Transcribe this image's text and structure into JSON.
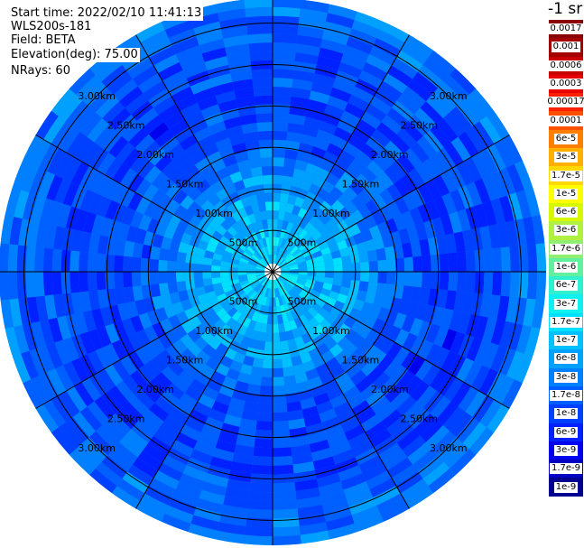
{
  "header": {
    "start_time": "Start time: 2022/02/10 11:41:13",
    "instrument": "WLS200s-181",
    "field": "Field: BETA",
    "elevation": "Elevation(deg): 75.00",
    "nrays": "NRays: 60"
  },
  "colorbar": {
    "unit_label": "-1 sr",
    "entries": [
      {
        "label": "0.0017",
        "color": "#8b0000"
      },
      {
        "label": "0.001",
        "color": "#a50000"
      },
      {
        "label": "0.0006",
        "color": "#c80000"
      },
      {
        "label": "0.0003",
        "color": "#e80000"
      },
      {
        "label": "0.00017",
        "color": "#ff2000"
      },
      {
        "label": "0.0001",
        "color": "#ff5000"
      },
      {
        "label": "6e-5",
        "color": "#ff8000"
      },
      {
        "label": "3e-5",
        "color": "#ffb000"
      },
      {
        "label": "1.7e-5",
        "color": "#ffd800"
      },
      {
        "label": "1e-5",
        "color": "#ffff00"
      },
      {
        "label": "6e-6",
        "color": "#d8f800"
      },
      {
        "label": "3e-6",
        "color": "#b0f040"
      },
      {
        "label": "1.7e-6",
        "color": "#90ee70"
      },
      {
        "label": "1e-6",
        "color": "#60f0a0"
      },
      {
        "label": "6e-7",
        "color": "#30f0d0"
      },
      {
        "label": "3e-7",
        "color": "#10f0f0"
      },
      {
        "label": "1.7e-7",
        "color": "#00e0ff"
      },
      {
        "label": "1e-7",
        "color": "#00c0ff"
      },
      {
        "label": "6e-8",
        "color": "#00a0ff"
      },
      {
        "label": "3e-8",
        "color": "#0080ff"
      },
      {
        "label": "1.7e-8",
        "color": "#0060ff"
      },
      {
        "label": "1e-8",
        "color": "#0040ff"
      },
      {
        "label": "6e-9",
        "color": "#0020ff"
      },
      {
        "label": "3e-9",
        "color": "#0000ee"
      },
      {
        "label": "1.7e-9",
        "color": "#0000c0"
      },
      {
        "label": "1e-9",
        "color": "#000090"
      }
    ]
  },
  "chart_data": {
    "type": "heatmap",
    "projection": "polar PPI",
    "field": "BETA",
    "elevation_deg": 75.0,
    "nrays": 60,
    "max_range_km": 3.3,
    "range_rings_km": [
      0.5,
      1.0,
      1.5,
      2.0,
      2.5,
      3.0
    ],
    "range_ring_labels": [
      "500m",
      "1.00km",
      "1.50km",
      "2.00km",
      "2.50km",
      "3.00km"
    ],
    "spokes_deg": [
      0,
      30,
      60,
      90,
      120,
      150,
      180,
      210,
      240,
      270,
      300,
      330
    ],
    "range_profile": [
      {
        "range_km": 0.1,
        "color_index": 16
      },
      {
        "range_km": 0.5,
        "color_index": 17
      },
      {
        "range_km": 1.0,
        "color_index": 18
      },
      {
        "range_km": 1.5,
        "color_index": 20
      },
      {
        "range_km": 2.0,
        "color_index": 21
      },
      {
        "range_km": 2.5,
        "color_index": 21
      },
      {
        "range_km": 3.0,
        "color_index": 20
      },
      {
        "range_km": 3.3,
        "color_index": 19
      }
    ]
  }
}
